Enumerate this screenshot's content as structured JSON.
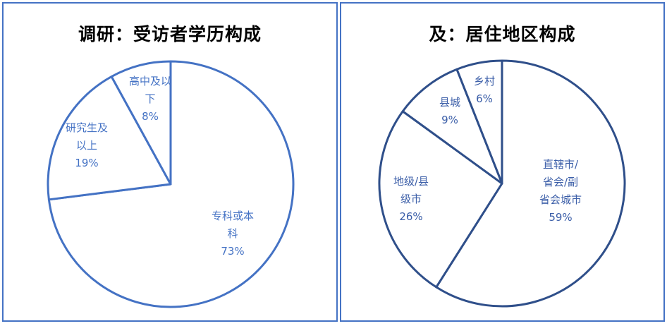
{
  "chart_data": [
    {
      "type": "pie",
      "title": "调研：受访者学历构成",
      "color": "#4472c4",
      "slices": [
        {
          "label_lines": [
            "专科或本",
            "科"
          ],
          "pct": "73%",
          "value": 73
        },
        {
          "label_lines": [
            "研究生及",
            "以上"
          ],
          "pct": "19%",
          "value": 19
        },
        {
          "label_lines": [
            "高中及以",
            "下"
          ],
          "pct": "8%",
          "value": 8
        }
      ]
    },
    {
      "type": "pie",
      "title": "及：居住地区构成",
      "color": "#2f4f8a",
      "slices": [
        {
          "label_lines": [
            "直辖市/",
            "省会/副",
            "省会城市"
          ],
          "pct": "59%",
          "value": 59
        },
        {
          "label_lines": [
            "地级/县",
            "级市"
          ],
          "pct": "26%",
          "value": 26
        },
        {
          "label_lines": [
            "县城"
          ],
          "pct": "9%",
          "value": 9
        },
        {
          "label_lines": [
            "乡村"
          ],
          "pct": "6%",
          "value": 6
        }
      ]
    }
  ]
}
